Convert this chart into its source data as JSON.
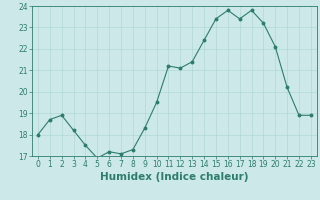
{
  "xlabel": "Humidex (Indice chaleur)",
  "ylabel": "",
  "x": [
    0,
    1,
    2,
    3,
    4,
    5,
    6,
    7,
    8,
    9,
    10,
    11,
    12,
    13,
    14,
    15,
    16,
    17,
    18,
    19,
    20,
    21,
    22,
    23
  ],
  "y": [
    18.0,
    18.7,
    18.9,
    18.2,
    17.5,
    16.9,
    17.2,
    17.1,
    17.3,
    18.3,
    19.5,
    21.2,
    21.1,
    21.4,
    22.4,
    23.4,
    23.8,
    23.4,
    23.8,
    23.2,
    22.1,
    20.2,
    18.9,
    18.9
  ],
  "ylim": [
    17,
    24
  ],
  "xlim": [
    -0.5,
    23.5
  ],
  "yticks": [
    17,
    18,
    19,
    20,
    21,
    22,
    23,
    24
  ],
  "xticks": [
    0,
    1,
    2,
    3,
    4,
    5,
    6,
    7,
    8,
    9,
    10,
    11,
    12,
    13,
    14,
    15,
    16,
    17,
    18,
    19,
    20,
    21,
    22,
    23
  ],
  "line_color": "#2d7d6e",
  "marker_color": "#2d7d6e",
  "bg_color": "#cce8e8",
  "grid_color": "#aad4d4",
  "axes_color": "#2d7d6e",
  "tick_label_fontsize": 5.5,
  "xlabel_fontsize": 7.5
}
